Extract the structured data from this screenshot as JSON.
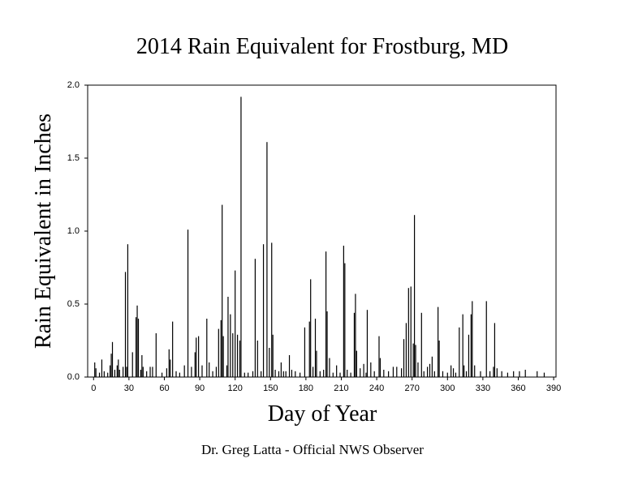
{
  "chart_data": {
    "type": "bar",
    "title": "2014 Rain Equivalent for Frostburg, MD",
    "x_label": "Day of Year",
    "y_label": "Rain Equivalent in Inches",
    "footer": "Dr. Greg Latta - Official NWS Observer",
    "color": "#000000",
    "xlim": [
      -5,
      392
    ],
    "ylim": [
      0,
      2
    ],
    "xticks": [
      0,
      30,
      60,
      90,
      120,
      150,
      180,
      210,
      240,
      270,
      300,
      330,
      360,
      390
    ],
    "yticks": [
      {
        "value": 0,
        "label": "0.0"
      },
      {
        "value": 0.5,
        "label": "0.5"
      },
      {
        "value": 1,
        "label": "1.0"
      },
      {
        "value": 1.5,
        "label": "1.5"
      },
      {
        "value": 2,
        "label": "2.0"
      }
    ],
    "x": [
      1,
      2,
      5,
      7,
      9,
      12,
      14,
      15,
      16,
      18,
      20,
      21,
      22,
      25,
      27,
      28,
      29,
      33,
      36,
      37,
      38,
      40,
      41,
      42,
      45,
      48,
      50,
      53,
      58,
      62,
      64,
      65,
      67,
      70,
      73,
      77,
      80,
      83,
      86,
      87,
      89,
      92,
      96,
      98,
      101,
      104,
      106,
      108,
      109,
      110,
      113,
      114,
      116,
      118,
      120,
      122,
      124,
      125,
      128,
      131,
      135,
      137,
      139,
      142,
      144,
      147,
      149,
      151,
      152,
      154,
      157,
      159,
      161,
      163,
      166,
      168,
      171,
      175,
      179,
      183,
      184,
      186,
      188,
      189,
      192,
      195,
      197,
      198,
      200,
      203,
      206,
      209,
      212,
      213,
      215,
      218,
      221,
      222,
      223,
      226,
      229,
      231,
      232,
      235,
      238,
      242,
      243,
      246,
      250,
      254,
      257,
      261,
      263,
      265,
      267,
      269,
      271,
      272,
      273,
      275,
      278,
      280,
      283,
      285,
      287,
      289,
      292,
      293,
      296,
      300,
      303,
      305,
      307,
      310,
      313,
      314,
      316,
      318,
      320,
      321,
      323,
      328,
      333,
      336,
      339,
      340,
      342,
      346,
      351,
      356,
      361,
      366,
      376,
      382
    ],
    "values": [
      0.1,
      0.06,
      0.03,
      0.12,
      0.04,
      0.03,
      0.08,
      0.16,
      0.24,
      0.05,
      0.08,
      0.12,
      0.05,
      0.07,
      0.72,
      0.07,
      0.91,
      0.17,
      0.41,
      0.49,
      0.4,
      0.05,
      0.15,
      0.07,
      0.04,
      0.07,
      0.07,
      0.3,
      0.03,
      0.06,
      0.19,
      0.12,
      0.38,
      0.04,
      0.03,
      0.08,
      1.01,
      0.07,
      0.17,
      0.27,
      0.28,
      0.08,
      0.4,
      0.1,
      0.04,
      0.07,
      0.33,
      0.39,
      1.18,
      0.28,
      0.08,
      0.55,
      0.43,
      0.3,
      0.73,
      0.29,
      0.25,
      1.92,
      0.03,
      0.03,
      0.04,
      0.81,
      0.25,
      0.04,
      0.91,
      1.61,
      0.2,
      0.92,
      0.29,
      0.05,
      0.04,
      0.1,
      0.04,
      0.04,
      0.15,
      0.05,
      0.04,
      0.03,
      0.34,
      0.38,
      0.67,
      0.07,
      0.4,
      0.18,
      0.04,
      0.05,
      0.86,
      0.45,
      0.13,
      0.03,
      0.08,
      0.03,
      0.9,
      0.78,
      0.05,
      0.03,
      0.44,
      0.57,
      0.18,
      0.06,
      0.09,
      0.03,
      0.46,
      0.1,
      0.04,
      0.28,
      0.13,
      0.05,
      0.04,
      0.07,
      0.07,
      0.06,
      0.26,
      0.37,
      0.61,
      0.62,
      0.23,
      1.11,
      0.22,
      0.1,
      0.44,
      0.04,
      0.07,
      0.09,
      0.14,
      0.04,
      0.48,
      0.25,
      0.04,
      0.03,
      0.08,
      0.06,
      0.03,
      0.34,
      0.43,
      0.08,
      0.04,
      0.29,
      0.43,
      0.52,
      0.08,
      0.04,
      0.52,
      0.04,
      0.07,
      0.37,
      0.06,
      0.04,
      0.03,
      0.04,
      0.04,
      0.05,
      0.04,
      0.03
    ]
  }
}
